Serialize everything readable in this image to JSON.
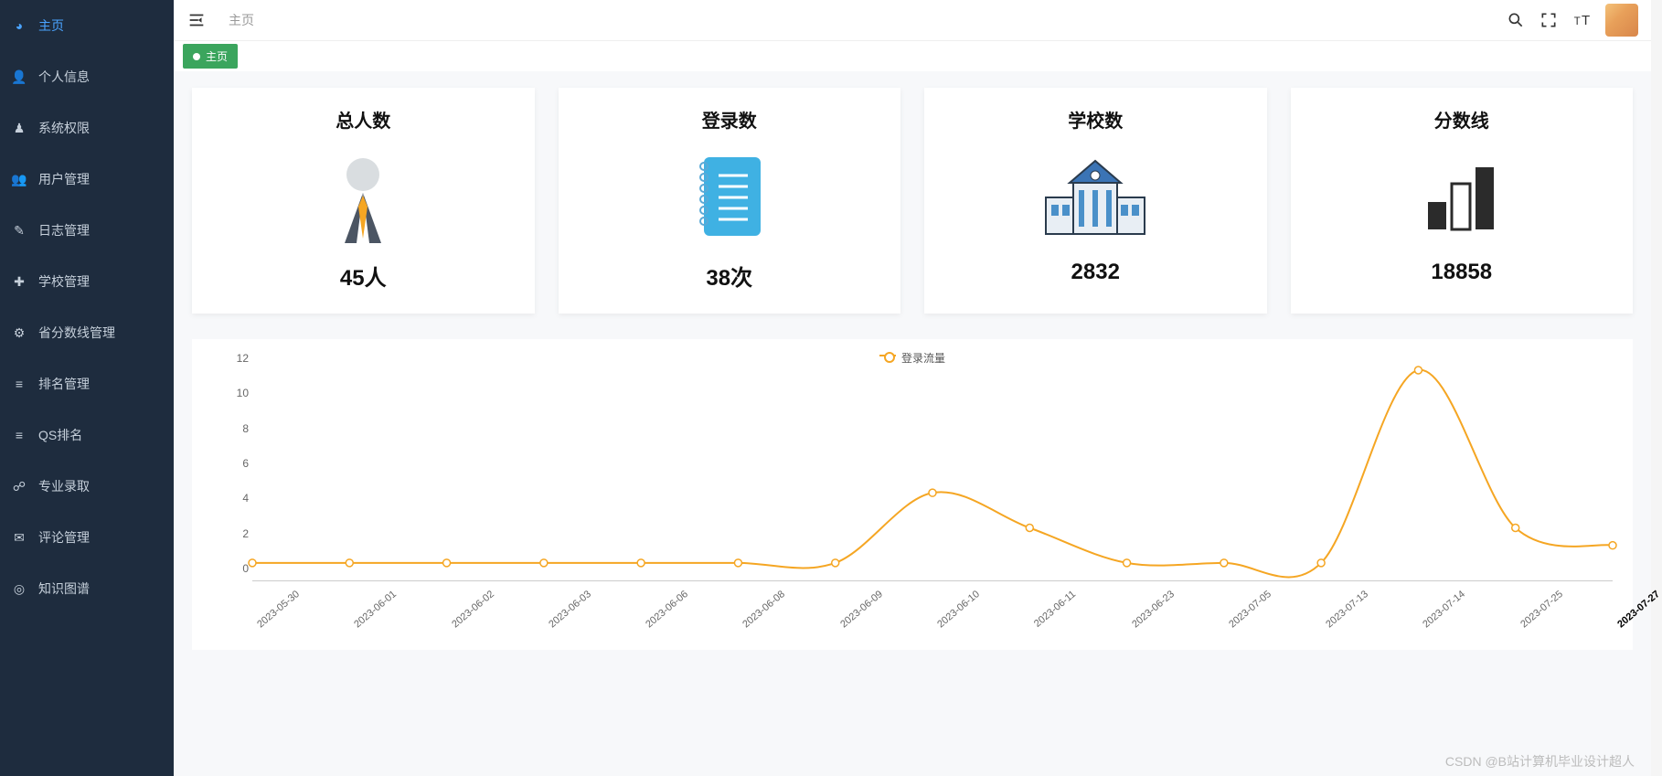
{
  "sidebar": {
    "items": [
      {
        "label": "主页",
        "icon": "dashboard",
        "active": true
      },
      {
        "label": "个人信息",
        "icon": "user"
      },
      {
        "label": "系统权限",
        "icon": "key"
      },
      {
        "label": "用户管理",
        "icon": "users"
      },
      {
        "label": "日志管理",
        "icon": "feather"
      },
      {
        "label": "学校管理",
        "icon": "plus"
      },
      {
        "label": "省分数线管理",
        "icon": "gear"
      },
      {
        "label": "排名管理",
        "icon": "list"
      },
      {
        "label": "QS排名",
        "icon": "list"
      },
      {
        "label": "专业录取",
        "icon": "share"
      },
      {
        "label": "评论管理",
        "icon": "comment"
      },
      {
        "label": "知识图谱",
        "icon": "globe"
      }
    ]
  },
  "topbar": {
    "breadcrumb": "主页"
  },
  "tabs": {
    "active": "主页"
  },
  "cards": [
    {
      "title": "总人数",
      "value": "45人",
      "icon": "person",
      "colors": {
        "head": "#d9dde0",
        "tie": "#f5a623",
        "body": "#4b5563"
      }
    },
    {
      "title": "登录数",
      "value": "38次",
      "icon": "notebook",
      "colors": {
        "cover": "#3fb1e3",
        "page": "#e8f4fb",
        "ring": "#5aa9d6",
        "line": "#ffffff"
      }
    },
    {
      "title": "学校数",
      "value": "2832",
      "icon": "school",
      "colors": {
        "wall": "#e8eef4",
        "roof": "#3b74b5",
        "pillar": "#4a90c9",
        "outline": "#2a3b4d"
      }
    },
    {
      "title": "分数线",
      "value": "18858",
      "icon": "bars",
      "colors": {
        "fill": "#2b2b2b",
        "border": "#2b2b2b",
        "bg": "#ffffff"
      }
    }
  ],
  "chart": {
    "type": "line",
    "legend": "登录流量",
    "line_color": "#f5a623",
    "marker": {
      "shape": "circle",
      "border": "#f5a623",
      "fill": "#ffffff",
      "size": 6
    },
    "line_width": 2,
    "background_color": "#ffffff",
    "ylim": [
      0,
      12
    ],
    "ytick_step": 2,
    "yticks": [
      0,
      2,
      4,
      6,
      8,
      10,
      12
    ],
    "axis_color": "#cccccc",
    "tick_fontsize": 12,
    "tick_color": "#666666",
    "x_labels": [
      "2023-05-30",
      "2023-06-01",
      "2023-06-02",
      "2023-06-03",
      "2023-06-06",
      "2023-06-08",
      "2023-06-09",
      "2023-06-10",
      "2023-06-11",
      "2023-06-23",
      "2023-07-05",
      "2023-07-13",
      "2023-07-14",
      "2023-07-25",
      "2023-07-27"
    ],
    "x_bold_index": 14,
    "values": [
      1,
      1,
      1,
      1,
      1,
      1,
      1,
      5,
      3,
      1,
      1,
      1,
      12,
      3,
      2
    ],
    "smooth": true
  },
  "watermark": "CSDN @B站计算机毕业设计超人"
}
